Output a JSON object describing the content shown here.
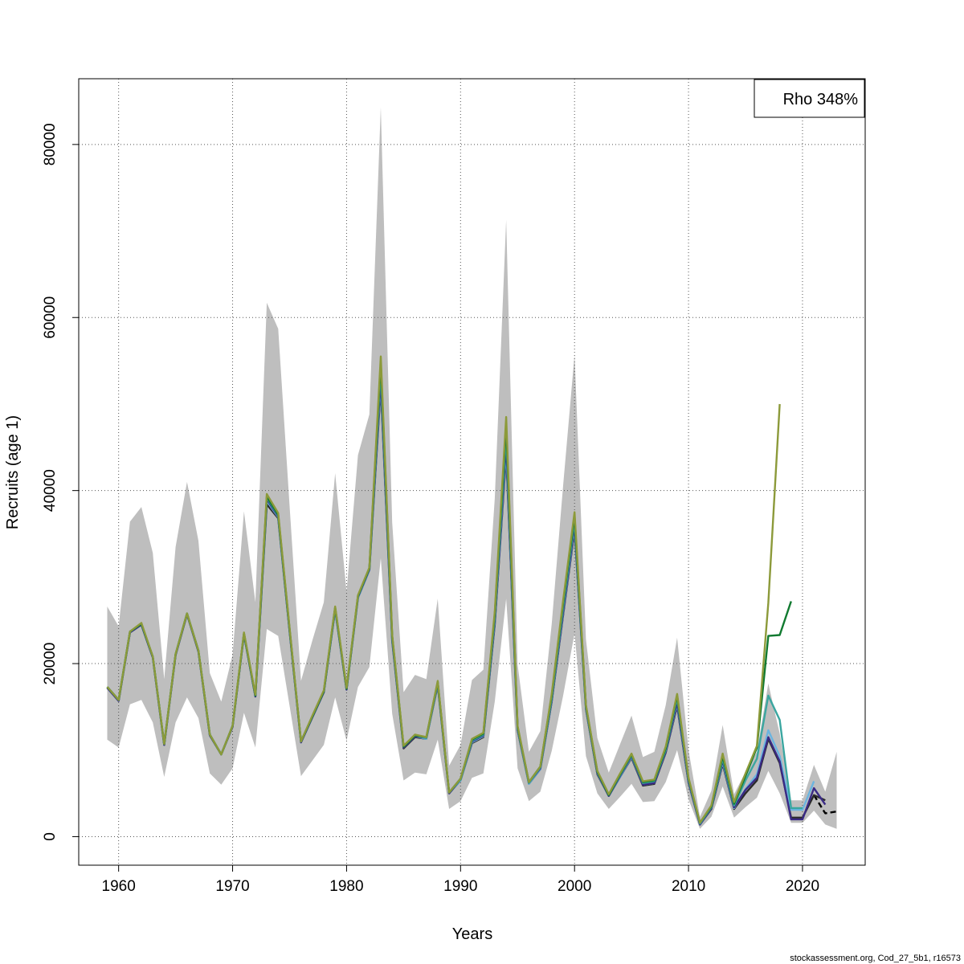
{
  "chart_data": {
    "type": "line",
    "xlabel": "Years",
    "ylabel": "Recruits (age 1)",
    "xlim": [
      1956.5,
      2025.5
    ],
    "ylim": [
      -3300,
      87600
    ],
    "xticks": [
      1960,
      1970,
      1980,
      1990,
      2000,
      2010,
      2020
    ],
    "yticks": [
      0,
      20000,
      40000,
      60000,
      80000
    ],
    "grid": true,
    "legend": {
      "text": "Rho 348%",
      "placement": "top-right"
    },
    "footer": "stockassessment.org, Cod_27_5b1, r16573",
    "colors": {
      "band": "#bebebe",
      "grid": "#555555",
      "base": "#000000",
      "run1": "#2a2a2a",
      "run2": "#6bb4e0",
      "run3": "#3a2a85",
      "run4": "#3aa6a0",
      "run5": "#117a30",
      "run6": "#8c9a3a"
    },
    "confidence_band": {
      "name": "",
      "x": [
        1959,
        1960,
        1961,
        1962,
        1963,
        1964,
        1965,
        1966,
        1967,
        1968,
        1969,
        1970,
        1971,
        1972,
        1973,
        1974,
        1975,
        1976,
        1977,
        1978,
        1979,
        1980,
        1981,
        1982,
        1983,
        1984,
        1985,
        1986,
        1987,
        1988,
        1989,
        1990,
        1991,
        1992,
        1993,
        1994,
        1995,
        1996,
        1997,
        1998,
        1999,
        2000,
        2001,
        2002,
        2003,
        2004,
        2005,
        2006,
        2007,
        2008,
        2009,
        2010,
        2011,
        2012,
        2013,
        2014,
        2015,
        2016,
        2017,
        2018,
        2019,
        2020,
        2021,
        2022,
        2023
      ],
      "lower": [
        11200,
        10300,
        15300,
        15800,
        13200,
        6900,
        13200,
        16100,
        13700,
        7300,
        6000,
        7900,
        14300,
        10300,
        24000,
        23200,
        15100,
        7000,
        8800,
        10600,
        16100,
        11100,
        17300,
        19600,
        32200,
        14200,
        6500,
        7400,
        7200,
        11200,
        3200,
        4100,
        6800,
        7300,
        15600,
        27500,
        7900,
        4100,
        5200,
        9900,
        16300,
        23500,
        9300,
        5000,
        3200,
        4600,
        6100,
        4000,
        4100,
        6300,
        10000,
        4300,
        900,
        2300,
        5800,
        2200,
        3400,
        4500,
        7600,
        5000,
        1600,
        1600,
        3000,
        1400,
        900
      ],
      "upper": [
        26600,
        24300,
        36400,
        38100,
        32800,
        18200,
        33500,
        41000,
        34200,
        18900,
        15600,
        21000,
        37600,
        27100,
        61700,
        58700,
        38200,
        18000,
        22700,
        27100,
        42000,
        28300,
        44100,
        48800,
        84300,
        36300,
        16700,
        18700,
        18200,
        27500,
        8200,
        10600,
        18100,
        19300,
        39100,
        71300,
        19900,
        9800,
        12200,
        24600,
        40600,
        55700,
        22800,
        11400,
        7400,
        10700,
        14000,
        9200,
        9800,
        15200,
        23000,
        10000,
        2300,
        5300,
        12900,
        4900,
        7500,
        9800,
        17700,
        11900,
        4200,
        4200,
        8300,
        5200,
        9800
      ]
    },
    "series": [
      {
        "name": "",
        "color": "#000000",
        "dashed": true,
        "x": [
          2021,
          2022,
          2023
        ],
        "values": [
          4800,
          2700,
          2900
        ]
      },
      {
        "name": "",
        "color": "#2a2a2a",
        "dashed": false,
        "x": [
          1959,
          1960,
          1961,
          1962,
          1963,
          1964,
          1965,
          1966,
          1967,
          1968,
          1969,
          1970,
          1971,
          1972,
          1973,
          1974,
          1975,
          1976,
          1977,
          1978,
          1979,
          1980,
          1981,
          1982,
          1983,
          1984,
          1985,
          1986,
          1987,
          1988,
          1989,
          1990,
          1991,
          1992,
          1993,
          1994,
          1995,
          1996,
          1997,
          1998,
          1999,
          2000,
          2001,
          2002,
          2003,
          2004,
          2005,
          2006,
          2007,
          2008,
          2009,
          2010,
          2011,
          2012,
          2013,
          2014,
          2015,
          2016,
          2017,
          2018,
          2019,
          2020,
          2021,
          2022
        ],
        "values": [
          17200,
          15700,
          23600,
          24500,
          20700,
          10600,
          21000,
          25700,
          21400,
          11700,
          9500,
          12700,
          23400,
          16200,
          38400,
          36800,
          23700,
          10900,
          13800,
          16700,
          26200,
          17000,
          27600,
          30800,
          52000,
          22600,
          10200,
          11500,
          11300,
          17500,
          5000,
          6500,
          10800,
          11500,
          24500,
          44200,
          12300,
          6100,
          7800,
          15600,
          25600,
          35400,
          14700,
          7200,
          4700,
          6900,
          9100,
          5900,
          6100,
          9700,
          15100,
          6200,
          1400,
          3200,
          8400,
          3200,
          5000,
          6500,
          11300,
          8500,
          2200,
          2200,
          4800,
          4200
        ]
      },
      {
        "name": "",
        "color": "#6bb4e0",
        "dashed": false,
        "x": [
          1959,
          1960,
          1961,
          1962,
          1963,
          1964,
          1965,
          1966,
          1967,
          1968,
          1969,
          1970,
          1971,
          1972,
          1973,
          1974,
          1975,
          1976,
          1977,
          1978,
          1979,
          1980,
          1981,
          1982,
          1983,
          1984,
          1985,
          1986,
          1987,
          1988,
          1989,
          1990,
          1991,
          1992,
          1993,
          1994,
          1995,
          1996,
          1997,
          1998,
          1999,
          2000,
          2001,
          2002,
          2003,
          2004,
          2005,
          2006,
          2007,
          2008,
          2009,
          2010,
          2011,
          2012,
          2013,
          2014,
          2015,
          2016,
          2017,
          2018,
          2019,
          2020,
          2021
        ],
        "values": [
          17200,
          15700,
          23600,
          24500,
          20700,
          10600,
          21000,
          25700,
          21400,
          11700,
          9500,
          12700,
          23400,
          16200,
          38800,
          36900,
          23800,
          10900,
          13800,
          16700,
          26200,
          17000,
          27600,
          30800,
          52500,
          22700,
          10300,
          11600,
          11300,
          17600,
          5000,
          6500,
          10900,
          11600,
          24700,
          44800,
          12400,
          6100,
          7800,
          15700,
          25800,
          35700,
          14800,
          7300,
          4700,
          6900,
          9200,
          6000,
          6200,
          9800,
          15300,
          6300,
          1400,
          3300,
          8600,
          3300,
          5500,
          7200,
          12300,
          9300,
          3100,
          3100,
          6400
        ]
      },
      {
        "name": "",
        "color": "#3a2a85",
        "dashed": false,
        "x": [
          1959,
          1960,
          1961,
          1962,
          1963,
          1964,
          1965,
          1966,
          1967,
          1968,
          1969,
          1970,
          1971,
          1972,
          1973,
          1974,
          1975,
          1976,
          1977,
          1978,
          1979,
          1980,
          1981,
          1982,
          1983,
          1984,
          1985,
          1986,
          1987,
          1988,
          1989,
          1990,
          1991,
          1992,
          1993,
          1994,
          1995,
          1996,
          1997,
          1998,
          1999,
          2000,
          2001,
          2002,
          2003,
          2004,
          2005,
          2006,
          2007,
          2008,
          2009,
          2010,
          2011,
          2012,
          2013,
          2014,
          2015,
          2016,
          2017,
          2018,
          2019,
          2020,
          2021,
          2022
        ],
        "values": [
          17200,
          15700,
          23600,
          24500,
          20700,
          10600,
          21000,
          25700,
          21400,
          11700,
          9500,
          12700,
          23400,
          16200,
          39000,
          37000,
          23800,
          10900,
          13800,
          16700,
          26300,
          17000,
          27700,
          30900,
          53000,
          22800,
          10300,
          11600,
          11400,
          17700,
          5000,
          6600,
          11000,
          11700,
          24900,
          45500,
          12500,
          6200,
          7900,
          15800,
          26000,
          36000,
          14900,
          7400,
          4700,
          7000,
          9300,
          6000,
          6200,
          9800,
          15500,
          6400,
          1400,
          3300,
          8800,
          3400,
          5400,
          6800,
          11500,
          8700,
          2000,
          2000,
          5600,
          3700
        ]
      },
      {
        "name": "",
        "color": "#3aa6a0",
        "dashed": false,
        "x": [
          1959,
          1960,
          1961,
          1962,
          1963,
          1964,
          1965,
          1966,
          1967,
          1968,
          1969,
          1970,
          1971,
          1972,
          1973,
          1974,
          1975,
          1976,
          1977,
          1978,
          1979,
          1980,
          1981,
          1982,
          1983,
          1984,
          1985,
          1986,
          1987,
          1988,
          1989,
          1990,
          1991,
          1992,
          1993,
          1994,
          1995,
          1996,
          1997,
          1998,
          1999,
          2000,
          2001,
          2002,
          2003,
          2004,
          2005,
          2006,
          2007,
          2008,
          2009,
          2010,
          2011,
          2012,
          2013,
          2014,
          2015,
          2016,
          2017,
          2018,
          2019,
          2020
        ],
        "values": [
          17300,
          15800,
          23700,
          24600,
          20800,
          10700,
          21100,
          25800,
          21500,
          11800,
          9500,
          12800,
          23500,
          16300,
          39200,
          37100,
          23900,
          11000,
          13900,
          16800,
          26400,
          17100,
          27800,
          31000,
          54000,
          23000,
          10400,
          11700,
          11400,
          17800,
          5100,
          6600,
          11100,
          11800,
          25300,
          46500,
          12600,
          6200,
          8000,
          16000,
          26500,
          36500,
          15000,
          7500,
          4800,
          7100,
          9400,
          6200,
          6400,
          10000,
          16000,
          6600,
          1500,
          3400,
          9000,
          3600,
          6500,
          9000,
          16300,
          13500,
          3300,
          3300
        ]
      },
      {
        "name": "",
        "color": "#117a30",
        "dashed": false,
        "x": [
          1959,
          1960,
          1961,
          1962,
          1963,
          1964,
          1965,
          1966,
          1967,
          1968,
          1969,
          1970,
          1971,
          1972,
          1973,
          1974,
          1975,
          1976,
          1977,
          1978,
          1979,
          1980,
          1981,
          1982,
          1983,
          1984,
          1985,
          1986,
          1987,
          1988,
          1989,
          1990,
          1991,
          1992,
          1993,
          1994,
          1995,
          1996,
          1997,
          1998,
          1999,
          2000,
          2001,
          2002,
          2003,
          2004,
          2005,
          2006,
          2007,
          2008,
          2009,
          2010,
          2011,
          2012,
          2013,
          2014,
          2015,
          2016,
          2017,
          2018,
          2019
        ],
        "values": [
          17300,
          15800,
          23700,
          24600,
          20800,
          10700,
          21100,
          25800,
          21500,
          11800,
          9500,
          12800,
          23500,
          16300,
          39300,
          37200,
          24000,
          11000,
          13900,
          16800,
          26500,
          17100,
          27800,
          31000,
          54800,
          23200,
          10400,
          11700,
          11500,
          17900,
          5100,
          6700,
          11200,
          11900,
          25700,
          47500,
          12700,
          6300,
          8100,
          16300,
          27000,
          37000,
          15100,
          7500,
          4800,
          7200,
          9500,
          6300,
          6500,
          10200,
          16300,
          6700,
          1600,
          3500,
          9300,
          3800,
          7000,
          10300,
          23200,
          23300,
          27200
        ]
      },
      {
        "name": "",
        "color": "#8c9a3a",
        "dashed": false,
        "x": [
          1959,
          1960,
          1961,
          1962,
          1963,
          1964,
          1965,
          1966,
          1967,
          1968,
          1969,
          1970,
          1971,
          1972,
          1973,
          1974,
          1975,
          1976,
          1977,
          1978,
          1979,
          1980,
          1981,
          1982,
          1983,
          1984,
          1985,
          1986,
          1987,
          1988,
          1989,
          1990,
          1991,
          1992,
          1993,
          1994,
          1995,
          1996,
          1997,
          1998,
          1999,
          2000,
          2001,
          2002,
          2003,
          2004,
          2005,
          2006,
          2007,
          2008,
          2009,
          2010,
          2011,
          2012,
          2013,
          2014,
          2015,
          2016,
          2017,
          2018
        ],
        "values": [
          17300,
          15800,
          23700,
          24700,
          20800,
          10700,
          21100,
          25800,
          21500,
          11800,
          9500,
          12800,
          23600,
          16400,
          39600,
          37400,
          24100,
          11000,
          14000,
          16900,
          26600,
          17200,
          27900,
          31100,
          55500,
          23300,
          10500,
          11800,
          11500,
          18000,
          5100,
          6700,
          11300,
          12000,
          26000,
          48500,
          12800,
          6300,
          8100,
          16500,
          27300,
          37500,
          15200,
          7600,
          4900,
          7300,
          9600,
          6400,
          6600,
          10400,
          16500,
          6800,
          1600,
          3600,
          9600,
          4000,
          7300,
          10500,
          27000,
          50000
        ]
      }
    ]
  }
}
